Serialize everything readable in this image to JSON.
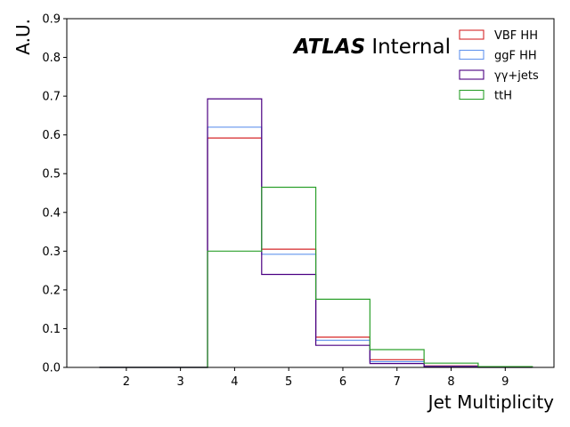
{
  "chart_data": {
    "type": "histogram",
    "experiment_label": {
      "bold": "ATLAS",
      "status": "Internal"
    },
    "xlabel": "Jet Multiplicity",
    "ylabel": "A.U.",
    "xlim": [
      0.9,
      9.9
    ],
    "ylim": [
      0,
      0.9
    ],
    "xticks": [
      "2",
      "3",
      "4",
      "5",
      "6",
      "7",
      "8",
      "9"
    ],
    "yticks": [
      "0.0",
      "0.1",
      "0.2",
      "0.3",
      "0.4",
      "0.5",
      "0.6",
      "0.7",
      "0.8",
      "0.9"
    ],
    "bin_edges": [
      1.5,
      2.5,
      3.5,
      4.5,
      5.5,
      6.5,
      7.5,
      8.5,
      9.5
    ],
    "legend_position": "top-right",
    "grid": false,
    "series": [
      {
        "name": "VBF HH",
        "color": "#d62728",
        "values": [
          0,
          0,
          0.592,
          0.305,
          0.078,
          0.02,
          0.004,
          0.001
        ]
      },
      {
        "name": "ggF HH",
        "color": "#6495ed",
        "values": [
          0,
          0,
          0.62,
          0.292,
          0.07,
          0.015,
          0.003,
          0.001
        ]
      },
      {
        "name": "γγ+jets",
        "color": "#4b0082",
        "values": [
          0,
          0,
          0.693,
          0.24,
          0.057,
          0.01,
          0.002,
          0.0
        ]
      },
      {
        "name": "ttH",
        "color": "#2ca02c",
        "values": [
          0,
          0,
          0.3,
          0.465,
          0.176,
          0.046,
          0.011,
          0.002
        ]
      }
    ]
  }
}
